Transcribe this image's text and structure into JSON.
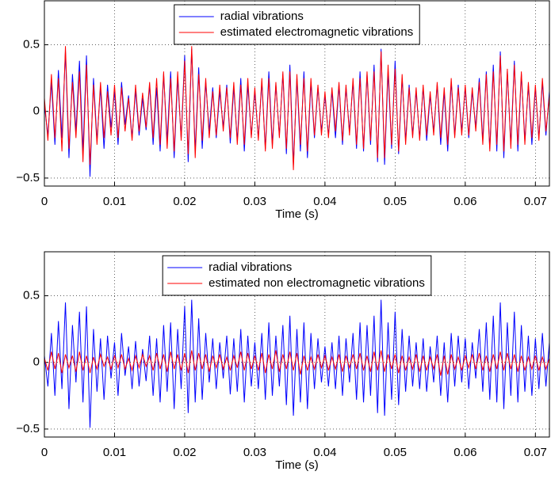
{
  "chart_data": [
    {
      "type": "line",
      "xlabel": "Time (s)",
      "grid": true,
      "legend": "top",
      "xlim": [
        0,
        0.072
      ],
      "ylim": [
        -0.56,
        0.83
      ],
      "xticks": [
        0,
        0.01,
        0.02,
        0.03,
        0.04,
        0.05,
        0.06,
        0.07
      ],
      "yticks": [
        {
          "value": -0.5,
          "label": "−0.5"
        },
        0,
        0.5
      ],
      "x": [
        0,
        0.0005,
        0.001,
        0.0015,
        0.002,
        0.0025,
        0.003,
        0.0035,
        0.004,
        0.0045,
        0.005,
        0.0055,
        0.006,
        0.0065,
        0.007,
        0.0075,
        0.008,
        0.0085,
        0.009,
        0.0095,
        0.01,
        0.0105,
        0.011,
        0.0115,
        0.012,
        0.0125,
        0.013,
        0.0135,
        0.014,
        0.0145,
        0.015,
        0.0155,
        0.016,
        0.0165,
        0.017,
        0.0175,
        0.018,
        0.0185,
        0.019,
        0.0195,
        0.02,
        0.0205,
        0.021,
        0.0215,
        0.022,
        0.0225,
        0.023,
        0.0235,
        0.024,
        0.0245,
        0.025,
        0.0255,
        0.026,
        0.0265,
        0.027,
        0.0275,
        0.028,
        0.0285,
        0.029,
        0.0295,
        0.03,
        0.0305,
        0.031,
        0.0315,
        0.032,
        0.0325,
        0.033,
        0.0335,
        0.034,
        0.0345,
        0.035,
        0.0355,
        0.036,
        0.0365,
        0.037,
        0.0375,
        0.038,
        0.0385,
        0.039,
        0.0395,
        0.04,
        0.0405,
        0.041,
        0.0415,
        0.042,
        0.0425,
        0.043,
        0.0435,
        0.044,
        0.0445,
        0.045,
        0.0455,
        0.046,
        0.0465,
        0.047,
        0.0475,
        0.048,
        0.0485,
        0.049,
        0.0495,
        0.05,
        0.0505,
        0.051,
        0.0515,
        0.052,
        0.0525,
        0.053,
        0.0535,
        0.054,
        0.0545,
        0.055,
        0.0555,
        0.056,
        0.0565,
        0.057,
        0.0575,
        0.058,
        0.0585,
        0.059,
        0.0595,
        0.06,
        0.0605,
        0.061,
        0.0615,
        0.062,
        0.0625,
        0.063,
        0.0635,
        0.064,
        0.0645,
        0.065,
        0.0655,
        0.066,
        0.0665,
        0.067,
        0.0675,
        0.068,
        0.0685,
        0.069,
        0.0695,
        0.07,
        0.0705,
        0.071,
        0.0715,
        0.072
      ],
      "series": [
        {
          "name": "radial vibrations",
          "color": "#0000ff",
          "values": [
            0.05,
            -0.18,
            0.22,
            -0.25,
            0.31,
            -0.2,
            0.45,
            -0.35,
            0.28,
            -0.15,
            0.38,
            -0.3,
            0.42,
            -0.49,
            0.25,
            -0.22,
            0.18,
            -0.28,
            0.2,
            -0.12,
            0.15,
            -0.25,
            0.22,
            -0.1,
            0.12,
            -0.2,
            0.16,
            -0.18,
            0.1,
            -0.14,
            0.2,
            -0.25,
            0.18,
            -0.3,
            0.28,
            -0.22,
            0.3,
            -0.35,
            0.25,
            -0.2,
            0.42,
            -0.38,
            0.47,
            -0.3,
            0.33,
            -0.28,
            0.22,
            -0.15,
            0.18,
            -0.2,
            0.15,
            -0.12,
            0.2,
            -0.24,
            0.18,
            -0.22,
            0.25,
            -0.3,
            0.2,
            -0.18,
            0.15,
            -0.2,
            0.22,
            -0.28,
            0.3,
            -0.25,
            0.2,
            -0.18,
            0.28,
            -0.32,
            0.35,
            -0.4,
            0.25,
            -0.3,
            0.3,
            -0.35,
            0.22,
            -0.2,
            0.18,
            -0.15,
            0.12,
            -0.18,
            0.15,
            -0.2,
            0.2,
            -0.25,
            0.18,
            -0.15,
            0.22,
            -0.28,
            0.3,
            -0.3,
            0.28,
            -0.25,
            0.35,
            -0.38,
            0.47,
            -0.4,
            0.3,
            -0.28,
            0.38,
            -0.32,
            0.25,
            -0.22,
            0.2,
            -0.18,
            0.15,
            -0.2,
            0.18,
            -0.22,
            0.12,
            -0.15,
            0.2,
            -0.25,
            0.15,
            -0.3,
            0.22,
            -0.18,
            0.2,
            -0.15,
            0.18,
            -0.2,
            0.15,
            -0.12,
            0.25,
            -0.22,
            0.3,
            -0.28,
            0.35,
            -0.3,
            0.45,
            -0.35,
            0.3,
            -0.25,
            0.38,
            -0.3,
            0.28,
            -0.22,
            0.2,
            -0.25,
            0.18,
            -0.2,
            0.22,
            -0.18,
            0.15
          ]
        },
        {
          "name": "estimated electromagnetic vibrations",
          "color": "#ff0000",
          "values": [
            0.1,
            -0.22,
            0.28,
            -0.2,
            0.25,
            -0.3,
            0.49,
            -0.28,
            0.22,
            -0.2,
            0.3,
            -0.38,
            0.35,
            -0.4,
            0.2,
            -0.25,
            0.22,
            -0.2,
            0.15,
            -0.18,
            0.2,
            -0.2,
            0.18,
            -0.15,
            0.1,
            -0.22,
            0.2,
            -0.15,
            0.14,
            -0.12,
            0.22,
            -0.2,
            0.25,
            -0.25,
            0.3,
            -0.28,
            0.25,
            -0.3,
            0.3,
            -0.22,
            0.38,
            -0.32,
            0.49,
            -0.35,
            0.28,
            -0.22,
            0.25,
            -0.2,
            0.15,
            -0.18,
            0.2,
            -0.15,
            0.18,
            -0.2,
            0.22,
            -0.25,
            0.2,
            -0.25,
            0.25,
            -0.2,
            0.18,
            -0.22,
            0.25,
            -0.3,
            0.25,
            -0.28,
            0.22,
            -0.2,
            0.3,
            -0.28,
            0.3,
            -0.44,
            0.28,
            -0.25,
            0.25,
            -0.3,
            0.25,
            -0.18,
            0.2,
            -0.18,
            0.15,
            -0.2,
            0.18,
            -0.15,
            0.22,
            -0.22,
            0.2,
            -0.18,
            0.25,
            -0.25,
            0.25,
            -0.28,
            0.3,
            -0.22,
            0.3,
            -0.35,
            0.45,
            -0.35,
            0.35,
            -0.25,
            0.32,
            -0.3,
            0.28,
            -0.25,
            0.18,
            -0.2,
            0.18,
            -0.22,
            0.2,
            -0.18,
            0.15,
            -0.18,
            0.22,
            -0.2,
            0.18,
            -0.25,
            0.25,
            -0.2,
            0.18,
            -0.18,
            0.2,
            -0.18,
            0.18,
            -0.15,
            0.22,
            -0.25,
            0.28,
            -0.3,
            0.3,
            -0.25,
            0.42,
            -0.3,
            0.32,
            -0.28,
            0.35,
            -0.25,
            0.3,
            -0.25,
            0.22,
            -0.2,
            0.2,
            -0.22,
            0.25,
            -0.15,
            0.12
          ]
        }
      ]
    },
    {
      "type": "line",
      "xlabel": "Time (s)",
      "grid": true,
      "legend": "top",
      "xlim": [
        0,
        0.072
      ],
      "ylim": [
        -0.56,
        0.83
      ],
      "xticks": [
        0,
        0.01,
        0.02,
        0.03,
        0.04,
        0.05,
        0.06,
        0.07
      ],
      "yticks": [
        {
          "value": -0.5,
          "label": "−0.5"
        },
        0,
        0.5
      ],
      "x": [
        0,
        0.0005,
        0.001,
        0.0015,
        0.002,
        0.0025,
        0.003,
        0.0035,
        0.004,
        0.0045,
        0.005,
        0.0055,
        0.006,
        0.0065,
        0.007,
        0.0075,
        0.008,
        0.0085,
        0.009,
        0.0095,
        0.01,
        0.0105,
        0.011,
        0.0115,
        0.012,
        0.0125,
        0.013,
        0.0135,
        0.014,
        0.0145,
        0.015,
        0.0155,
        0.016,
        0.0165,
        0.017,
        0.0175,
        0.018,
        0.0185,
        0.019,
        0.0195,
        0.02,
        0.0205,
        0.021,
        0.0215,
        0.022,
        0.0225,
        0.023,
        0.0235,
        0.024,
        0.0245,
        0.025,
        0.0255,
        0.026,
        0.0265,
        0.027,
        0.0275,
        0.028,
        0.0285,
        0.029,
        0.0295,
        0.03,
        0.0305,
        0.031,
        0.0315,
        0.032,
        0.0325,
        0.033,
        0.0335,
        0.034,
        0.0345,
        0.035,
        0.0355,
        0.036,
        0.0365,
        0.037,
        0.0375,
        0.038,
        0.0385,
        0.039,
        0.0395,
        0.04,
        0.0405,
        0.041,
        0.0415,
        0.042,
        0.0425,
        0.043,
        0.0435,
        0.044,
        0.0445,
        0.045,
        0.0455,
        0.046,
        0.0465,
        0.047,
        0.0475,
        0.048,
        0.0485,
        0.049,
        0.0495,
        0.05,
        0.0505,
        0.051,
        0.0515,
        0.052,
        0.0525,
        0.053,
        0.0535,
        0.054,
        0.0545,
        0.055,
        0.0555,
        0.056,
        0.0565,
        0.057,
        0.0575,
        0.058,
        0.0585,
        0.059,
        0.0595,
        0.06,
        0.0605,
        0.061,
        0.0615,
        0.062,
        0.0625,
        0.063,
        0.0635,
        0.064,
        0.0645,
        0.065,
        0.0655,
        0.066,
        0.0665,
        0.067,
        0.0675,
        0.068,
        0.0685,
        0.069,
        0.0695,
        0.07,
        0.0705,
        0.071,
        0.0715,
        0.072
      ],
      "series": [
        {
          "name": "radial vibrations",
          "color": "#0000ff",
          "values": [
            0.05,
            -0.18,
            0.22,
            -0.25,
            0.31,
            -0.2,
            0.45,
            -0.35,
            0.28,
            -0.15,
            0.38,
            -0.3,
            0.42,
            -0.49,
            0.25,
            -0.22,
            0.18,
            -0.28,
            0.2,
            -0.12,
            0.15,
            -0.25,
            0.22,
            -0.1,
            0.12,
            -0.2,
            0.16,
            -0.18,
            0.1,
            -0.14,
            0.2,
            -0.25,
            0.18,
            -0.3,
            0.28,
            -0.22,
            0.3,
            -0.35,
            0.25,
            -0.2,
            0.42,
            -0.38,
            0.47,
            -0.3,
            0.33,
            -0.28,
            0.22,
            -0.15,
            0.18,
            -0.2,
            0.15,
            -0.12,
            0.2,
            -0.24,
            0.18,
            -0.22,
            0.25,
            -0.3,
            0.2,
            -0.18,
            0.15,
            -0.2,
            0.22,
            -0.28,
            0.3,
            -0.25,
            0.2,
            -0.18,
            0.28,
            -0.32,
            0.35,
            -0.4,
            0.25,
            -0.3,
            0.3,
            -0.35,
            0.22,
            -0.2,
            0.18,
            -0.15,
            0.12,
            -0.18,
            0.15,
            -0.2,
            0.2,
            -0.25,
            0.18,
            -0.15,
            0.22,
            -0.28,
            0.3,
            -0.3,
            0.28,
            -0.25,
            0.35,
            -0.38,
            0.47,
            -0.4,
            0.3,
            -0.28,
            0.38,
            -0.32,
            0.25,
            -0.22,
            0.2,
            -0.18,
            0.15,
            -0.2,
            0.18,
            -0.22,
            0.12,
            -0.15,
            0.2,
            -0.25,
            0.15,
            -0.3,
            0.22,
            -0.18,
            0.2,
            -0.15,
            0.18,
            -0.2,
            0.15,
            -0.12,
            0.25,
            -0.22,
            0.3,
            -0.28,
            0.35,
            -0.3,
            0.45,
            -0.35,
            0.3,
            -0.25,
            0.38,
            -0.3,
            0.28,
            -0.22,
            0.2,
            -0.25,
            0.18,
            -0.2,
            0.22,
            -0.18,
            0.15
          ]
        },
        {
          "name": "estimated non electromagnetic vibrations",
          "color": "#ff0000",
          "values": [
            0.03,
            -0.06,
            0.08,
            -0.05,
            0.07,
            -0.08,
            0.06,
            -0.04,
            0.05,
            -0.07,
            0.08,
            -0.06,
            0.05,
            -0.08,
            0.04,
            -0.05,
            0.06,
            -0.03,
            0.04,
            -0.05,
            0.05,
            -0.04,
            0.06,
            -0.05,
            0.03,
            -0.06,
            0.05,
            -0.04,
            0.06,
            -0.03,
            0.05,
            -0.06,
            0.07,
            -0.05,
            0.06,
            -0.07,
            0.08,
            -0.05,
            0.06,
            -0.06,
            0.07,
            -0.08,
            0.09,
            -0.06,
            0.07,
            -0.05,
            0.06,
            -0.07,
            0.05,
            -0.04,
            0.06,
            -0.05,
            0.04,
            -0.06,
            0.05,
            -0.04,
            0.08,
            -0.06,
            0.07,
            -0.05,
            0.05,
            -0.06,
            0.07,
            -0.08,
            0.06,
            -0.05,
            0.09,
            -0.07,
            0.06,
            -0.05,
            0.08,
            -0.06,
            0.07,
            -0.09,
            0.05,
            -0.06,
            0.04,
            -0.05,
            0.06,
            -0.04,
            0.05,
            -0.06,
            0.04,
            -0.05,
            0.06,
            -0.07,
            0.05,
            -0.04,
            0.06,
            -0.05,
            0.07,
            -0.06,
            0.05,
            -0.07,
            0.08,
            -0.06,
            0.09,
            -0.07,
            0.06,
            -0.05,
            0.06,
            -0.08,
            0.05,
            -0.06,
            0.04,
            -0.05,
            0.06,
            -0.07,
            0.05,
            -0.06,
            0.04,
            -0.05,
            0.06,
            -0.1,
            0.05,
            -0.09,
            0.06,
            -0.05,
            0.04,
            -0.06,
            0.05,
            -0.04,
            0.06,
            -0.05,
            0.07,
            -0.06,
            0.05,
            -0.07,
            0.06,
            -0.05,
            0.08,
            -0.06,
            0.07,
            -0.05,
            0.06,
            -0.07,
            0.05,
            -0.06,
            0.04,
            -0.05,
            0.05,
            -0.06,
            0.04,
            -0.05,
            0.03
          ]
        }
      ]
    }
  ]
}
